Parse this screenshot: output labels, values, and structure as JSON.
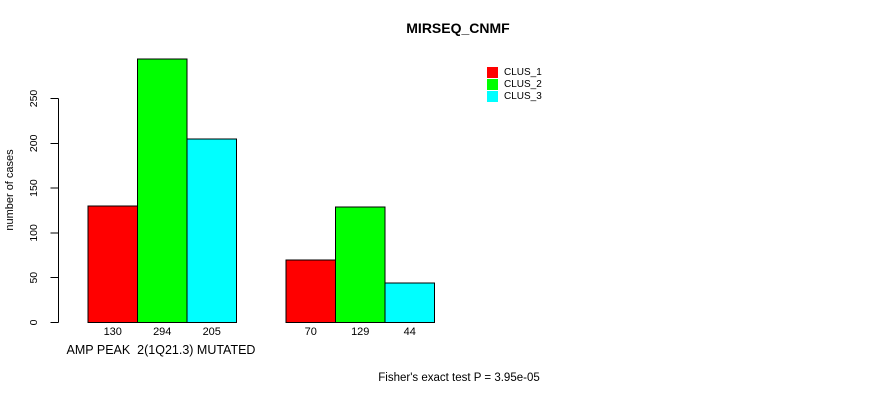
{
  "title": "MIRSEQ_CNMF",
  "footer": "Fisher's exact test P = 3.95e-05",
  "x_axis": {
    "group_label": "AMP PEAK  2(1Q21.3) MUTATED"
  },
  "y_axis": {
    "label": "number of cases",
    "ticks": [
      0,
      50,
      100,
      150,
      200,
      250
    ]
  },
  "legend": {
    "position": "top-right",
    "entries": [
      {
        "label": "CLUS_1",
        "color": "#ff0000"
      },
      {
        "label": "CLUS_2",
        "color": "#00ff00"
      },
      {
        "label": "CLUS_3",
        "color": "#00ffff"
      }
    ]
  },
  "chart_data": {
    "type": "bar",
    "title": "MIRSEQ_CNMF",
    "xlabel": "",
    "ylabel": "number of cases",
    "ylim": [
      0,
      294
    ],
    "yticks": [
      0,
      50,
      100,
      150,
      200,
      250
    ],
    "grid": false,
    "legend_position": "top-right",
    "categories": [
      "AMP PEAK  2(1Q21.3) MUTATED",
      ""
    ],
    "series": [
      {
        "name": "CLUS_1",
        "color": "#ff0000",
        "values": [
          130,
          70
        ]
      },
      {
        "name": "CLUS_2",
        "color": "#00ff00",
        "values": [
          294,
          129
        ]
      },
      {
        "name": "CLUS_3",
        "color": "#00ffff",
        "values": [
          205,
          44
        ]
      }
    ],
    "values_shown_under_bars": [
      [
        130,
        294,
        205
      ],
      [
        70,
        129,
        44
      ]
    ],
    "annotation": "Fisher's exact test P = 3.95e-05"
  }
}
